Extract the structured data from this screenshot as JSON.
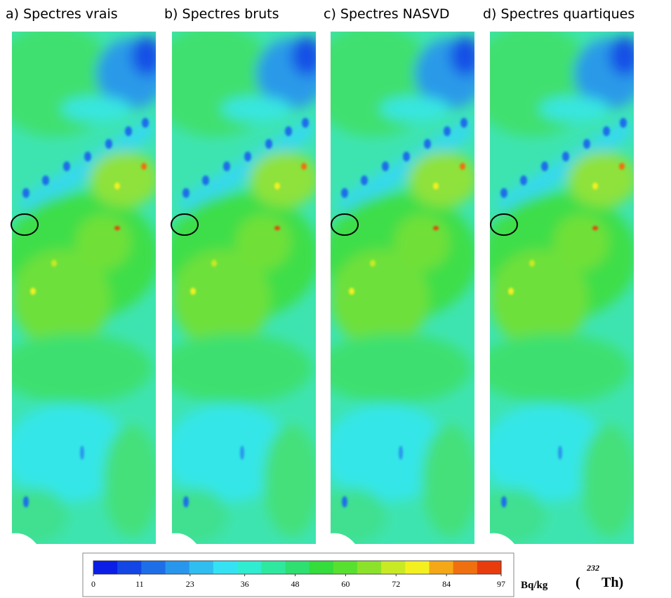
{
  "panels": [
    {
      "title": "a) Spectres vrais"
    },
    {
      "title": "b) Spectres bruts"
    },
    {
      "title": "c) Spectres NASVD"
    },
    {
      "title": "d) Spectres quartiques"
    }
  ],
  "colorbar": {
    "ticks": [
      0,
      11,
      23,
      36,
      48,
      60,
      72,
      84,
      97
    ],
    "colors": [
      "#0a1ee6",
      "#1446e6",
      "#1e6ee8",
      "#2896ec",
      "#30bef0",
      "#34e2f4",
      "#30ecd0",
      "#2ee8a0",
      "#2ee070",
      "#34dc3c",
      "#58e030",
      "#8ce22a",
      "#c8ea24",
      "#f4f020",
      "#f4a818",
      "#f07010",
      "#e83c0c"
    ],
    "unit": "Bq/kg"
  },
  "isotope": {
    "open": "(",
    "mass": "232",
    "symbol": "Th)"
  }
}
